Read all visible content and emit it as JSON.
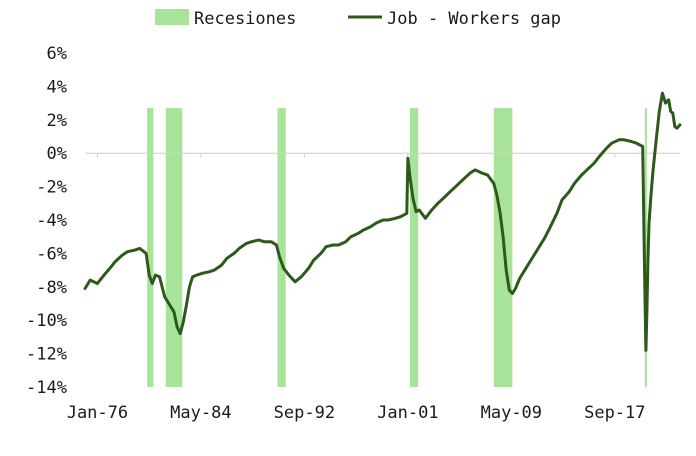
{
  "chart_data": {
    "type": "line",
    "title": "",
    "xlabel": "",
    "ylabel": "",
    "ylim": [
      -14,
      6
    ],
    "y_ticks": [
      6,
      4,
      2,
      0,
      -2,
      -4,
      -6,
      -8,
      -10,
      -12,
      -14
    ],
    "y_tick_labels": [
      "6%",
      "4%",
      "2%",
      "0%",
      "-2%",
      "-4%",
      "-6%",
      "-8%",
      "-10%",
      "-12%",
      "-14%"
    ],
    "x_range": [
      "1975-01",
      "2022-12"
    ],
    "x_ticks": [
      "1976-01",
      "1984-05",
      "1992-09",
      "2001-01",
      "2009-05",
      "2017-09"
    ],
    "x_tick_labels": [
      "Jan-76",
      "May-84",
      "Sep-92",
      "Jan-01",
      "May-09",
      "Sep-17"
    ],
    "grid": false,
    "zero_line": true,
    "legend": {
      "placement": "top-center",
      "entries": [
        {
          "label": "Recesiones",
          "color": "#a8e39a",
          "kind": "band"
        },
        {
          "label": "Job - Workers gap",
          "color": "#2d5a1b",
          "kind": "line"
        }
      ]
    },
    "recessions": {
      "name": "Recesiones",
      "color": "#a8e39a",
      "y_range": [
        -14,
        2.7
      ],
      "periods": [
        [
          "1980-01",
          "1980-07"
        ],
        [
          "1981-07",
          "1982-11"
        ],
        [
          "1990-07",
          "1991-03"
        ],
        [
          "2001-03",
          "2001-11"
        ],
        [
          "2007-12",
          "2009-06"
        ],
        [
          "2020-02",
          "2020-04"
        ]
      ]
    },
    "series": [
      {
        "name": "Job - Workers gap",
        "color": "#2d5a1b",
        "x": [
          "1975-01",
          "1975-06",
          "1976-01",
          "1976-06",
          "1977-01",
          "1977-06",
          "1978-01",
          "1978-06",
          "1979-01",
          "1979-06",
          "1979-12",
          "1980-03",
          "1980-06",
          "1980-09",
          "1981-01",
          "1981-06",
          "1981-10",
          "1982-03",
          "1982-06",
          "1982-09",
          "1982-12",
          "1983-03",
          "1983-06",
          "1983-09",
          "1984-01",
          "1984-06",
          "1985-01",
          "1985-06",
          "1986-01",
          "1986-06",
          "1987-01",
          "1987-06",
          "1988-01",
          "1988-06",
          "1989-01",
          "1989-06",
          "1990-01",
          "1990-06",
          "1990-09",
          "1991-01",
          "1991-06",
          "1991-12",
          "1992-06",
          "1993-01",
          "1993-06",
          "1994-01",
          "1994-06",
          "1995-01",
          "1995-06",
          "1996-01",
          "1996-06",
          "1997-01",
          "1997-06",
          "1998-01",
          "1998-06",
          "1999-01",
          "1999-06",
          "2000-01",
          "2000-06",
          "2000-12",
          "2001-01",
          "2001-03",
          "2001-06",
          "2001-09",
          "2001-12",
          "2002-06",
          "2002-12",
          "2003-06",
          "2004-01",
          "2004-06",
          "2005-01",
          "2005-06",
          "2006-01",
          "2006-06",
          "2007-01",
          "2007-06",
          "2007-12",
          "2008-03",
          "2008-06",
          "2008-09",
          "2008-12",
          "2009-03",
          "2009-06",
          "2009-09",
          "2010-01",
          "2010-06",
          "2011-01",
          "2011-06",
          "2012-01",
          "2012-06",
          "2013-01",
          "2013-06",
          "2014-01",
          "2014-06",
          "2015-01",
          "2015-06",
          "2016-01",
          "2016-06",
          "2017-01",
          "2017-06",
          "2018-01",
          "2018-06",
          "2019-01",
          "2019-06",
          "2019-12",
          "2020-02",
          "2020-03",
          "2020-04",
          "2020-05",
          "2020-06",
          "2020-08",
          "2020-10",
          "2021-01",
          "2021-04",
          "2021-07",
          "2021-10",
          "2022-01",
          "2022-03",
          "2022-05",
          "2022-07",
          "2022-09",
          "2022-12"
        ],
        "values": [
          -8.1,
          -7.6,
          -7.8,
          -7.4,
          -6.9,
          -6.5,
          -6.1,
          -5.9,
          -5.8,
          -5.7,
          -6.0,
          -7.3,
          -7.8,
          -7.3,
          -7.4,
          -8.6,
          -9.0,
          -9.5,
          -10.4,
          -10.8,
          -10.1,
          -9.1,
          -8.0,
          -7.4,
          -7.3,
          -7.2,
          -7.1,
          -7.0,
          -6.7,
          -6.3,
          -6.0,
          -5.7,
          -5.4,
          -5.3,
          -5.2,
          -5.3,
          -5.3,
          -5.5,
          -6.2,
          -6.9,
          -7.3,
          -7.7,
          -7.4,
          -6.9,
          -6.4,
          -6.0,
          -5.6,
          -5.5,
          -5.5,
          -5.3,
          -5.0,
          -4.8,
          -4.6,
          -4.4,
          -4.2,
          -4.0,
          -4.0,
          -3.9,
          -3.8,
          -3.6,
          -0.3,
          -1.4,
          -2.7,
          -3.5,
          -3.4,
          -3.9,
          -3.4,
          -3.0,
          -2.6,
          -2.3,
          -1.9,
          -1.6,
          -1.2,
          -1.0,
          -1.2,
          -1.3,
          -1.8,
          -2.5,
          -3.5,
          -5.0,
          -7.0,
          -8.2,
          -8.4,
          -8.1,
          -7.5,
          -7.0,
          -6.3,
          -5.8,
          -5.1,
          -4.5,
          -3.6,
          -2.8,
          -2.3,
          -1.8,
          -1.3,
          -1.0,
          -0.6,
          -0.2,
          0.3,
          0.6,
          0.8,
          0.8,
          0.7,
          0.6,
          0.4,
          -8.0,
          -11.8,
          -9.5,
          -6.5,
          -4.2,
          -2.5,
          -1.0,
          0.8,
          2.5,
          3.6,
          3.0,
          3.2,
          2.5,
          2.4,
          1.6,
          1.5,
          1.7
        ]
      }
    ]
  }
}
